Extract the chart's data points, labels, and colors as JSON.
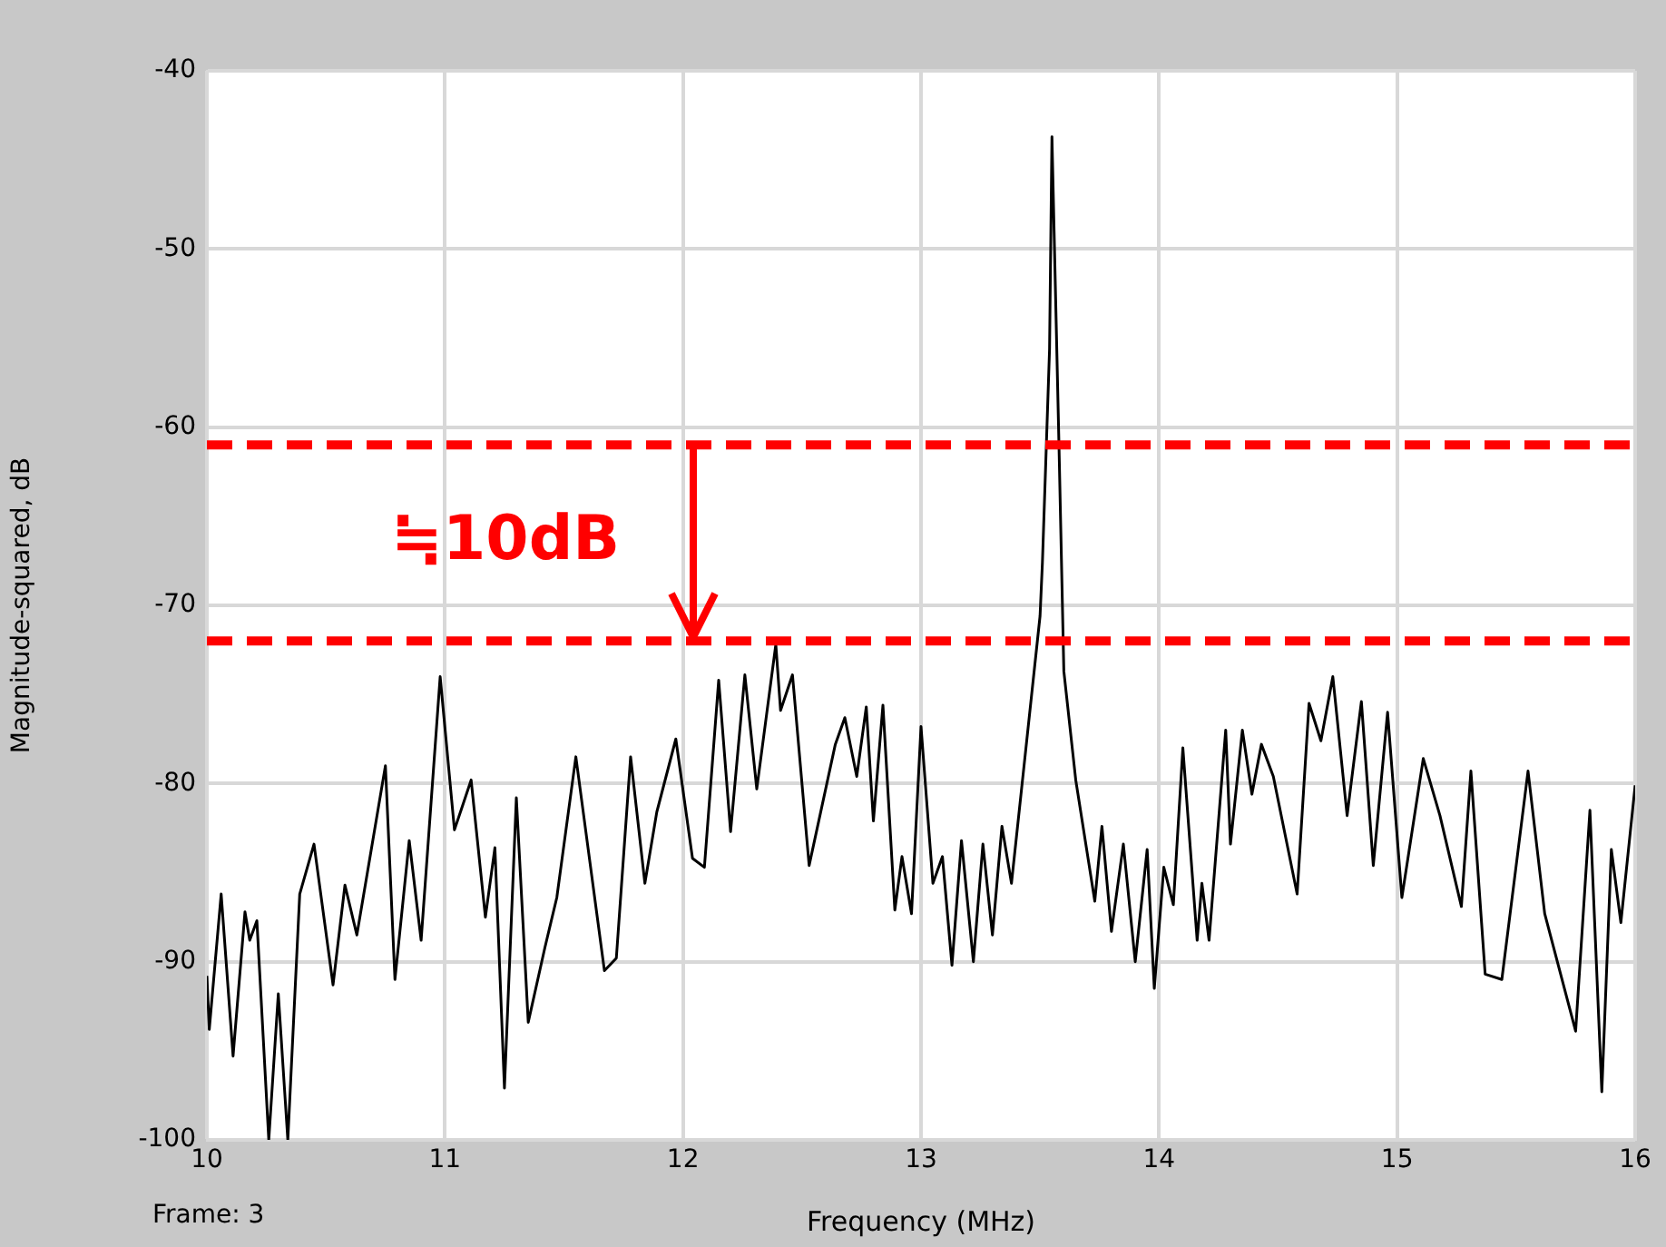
{
  "chart_data": {
    "type": "line",
    "xlabel": "Frequency (MHz)",
    "ylabel": "Magnitude-squared, dB",
    "x": [
      10.0,
      10.01,
      10.06,
      10.11,
      10.16,
      10.18,
      10.21,
      10.26,
      10.3,
      10.34,
      10.39,
      10.45,
      10.53,
      10.58,
      10.63,
      10.75,
      10.79,
      10.85,
      10.9,
      10.98,
      11.04,
      11.11,
      11.17,
      11.21,
      11.25,
      11.3,
      11.35,
      11.42,
      11.47,
      11.55,
      11.67,
      11.72,
      11.78,
      11.84,
      11.89,
      11.97,
      12.04,
      12.09,
      12.15,
      12.2,
      12.26,
      12.31,
      12.39,
      12.41,
      12.46,
      12.53,
      12.64,
      12.68,
      12.73,
      12.77,
      12.8,
      12.84,
      12.89,
      12.92,
      12.96,
      13.0,
      13.05,
      13.09,
      13.13,
      13.17,
      13.22,
      13.26,
      13.3,
      13.34,
      13.38,
      13.42,
      13.5,
      13.51,
      13.54,
      13.55,
      13.58,
      13.6,
      13.65,
      13.73,
      13.76,
      13.8,
      13.85,
      13.9,
      13.95,
      13.98,
      14.02,
      14.06,
      14.1,
      14.16,
      14.18,
      14.21,
      14.28,
      14.3,
      14.35,
      14.39,
      14.43,
      14.48,
      14.58,
      14.63,
      14.68,
      14.73,
      14.79,
      14.85,
      14.9,
      14.96,
      15.02,
      15.11,
      15.18,
      15.27,
      15.31,
      15.37,
      15.44,
      15.55,
      15.62,
      15.75,
      15.81,
      15.86,
      15.9,
      15.94,
      16.0
    ],
    "values": [
      -90.8,
      -93.8,
      -86.2,
      -95.3,
      -87.2,
      -88.8,
      -87.7,
      -100,
      -91.8,
      -100,
      -86.2,
      -83.4,
      -91.3,
      -85.7,
      -88.5,
      -79.0,
      -91.0,
      -83.2,
      -88.8,
      -74.0,
      -82.6,
      -79.8,
      -87.5,
      -83.6,
      -97.1,
      -80.8,
      -93.4,
      -89.2,
      -86.4,
      -78.5,
      -90.5,
      -89.8,
      -78.5,
      -85.6,
      -81.6,
      -77.5,
      -84.2,
      -84.7,
      -74.2,
      -82.7,
      -73.9,
      -80.3,
      -72.2,
      -75.9,
      -73.9,
      -84.6,
      -77.8,
      -76.3,
      -79.6,
      -75.7,
      -82.1,
      -75.6,
      -87.1,
      -84.1,
      -87.3,
      -76.8,
      -85.6,
      -84.1,
      -90.2,
      -83.2,
      -90.0,
      -83.4,
      -88.5,
      -82.4,
      -85.6,
      -80.6,
      -70.6,
      -67.6,
      -55.6,
      -43.7,
      -61.3,
      -73.7,
      -79.8,
      -86.6,
      -82.4,
      -88.3,
      -83.4,
      -90.0,
      -83.7,
      -91.5,
      -84.7,
      -86.8,
      -78.0,
      -88.8,
      -85.6,
      -88.8,
      -77.0,
      -83.4,
      -77.0,
      -80.6,
      -77.8,
      -79.6,
      -86.2,
      -75.5,
      -77.6,
      -74.0,
      -81.8,
      -75.4,
      -84.6,
      -76.0,
      -86.4,
      -78.6,
      -81.8,
      -86.9,
      -79.3,
      -90.7,
      -91.0,
      -79.3,
      -87.3,
      -93.9,
      -81.5,
      -97.3,
      -83.7,
      -87.8,
      -80.1
    ],
    "color": "#000000",
    "xlim": [
      10,
      16
    ],
    "xticks": [
      10,
      11,
      12,
      13,
      14,
      15,
      16
    ],
    "ylim": [
      -100,
      -40
    ],
    "yticks": [
      -100,
      -90,
      -80,
      -70,
      -60,
      -50,
      -40
    ],
    "grid": true,
    "ref_lines": [
      {
        "axis": "y",
        "value": -61,
        "color": "#ff0000",
        "line_style": "dashed"
      },
      {
        "axis": "y",
        "value": -72,
        "color": "#ff0000",
        "line_style": "dashed"
      }
    ],
    "annotations": [
      "≒10dB",
      "Frame: 3"
    ]
  }
}
